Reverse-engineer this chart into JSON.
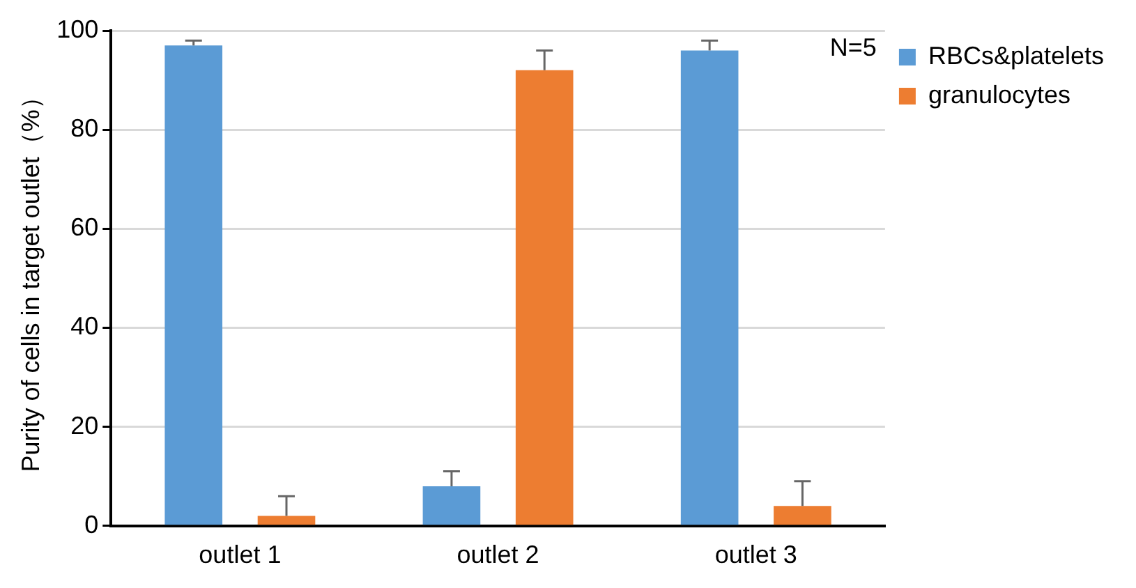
{
  "chart_data": {
    "type": "bar",
    "ylabel": "Purity of cells in target outlet（%）",
    "categories": [
      "outlet 1",
      "outlet 2",
      "outlet 3"
    ],
    "series": [
      {
        "name": "RBCs&platelets",
        "color": "#5b9bd5",
        "values": [
          97,
          8,
          96
        ],
        "errors": [
          [
            97,
            98
          ],
          [
            8,
            11
          ],
          [
            96,
            98
          ]
        ]
      },
      {
        "name": "granulocytes",
        "color": "#ed7d31",
        "values": [
          2,
          92,
          4
        ],
        "errors": [
          [
            2,
            6
          ],
          [
            92,
            96
          ],
          [
            4,
            9
          ]
        ]
      }
    ],
    "ylim": [
      0,
      100
    ],
    "yticks": [
      0,
      20,
      40,
      60,
      80,
      100
    ],
    "grid": "y",
    "legend": "top right",
    "annotations": [
      "N=5"
    ]
  }
}
